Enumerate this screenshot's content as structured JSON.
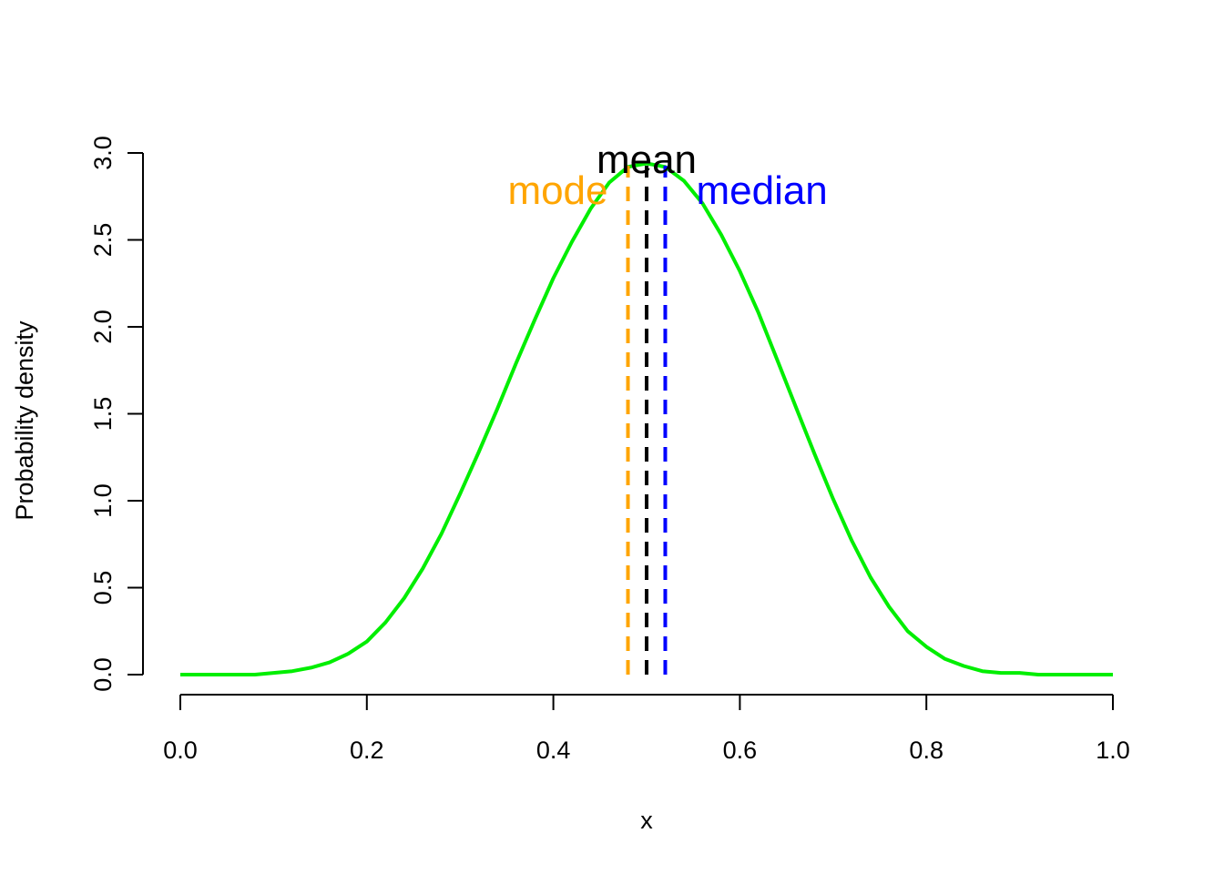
{
  "chart_data": {
    "type": "line",
    "title": "",
    "xlabel": "x",
    "ylabel": "Probability density",
    "xlim": [
      0,
      1
    ],
    "ylim": [
      0,
      3
    ],
    "x_ticks": [
      0,
      0.2,
      0.4,
      0.6,
      0.8,
      1.0
    ],
    "x_tick_labels": [
      "0.0",
      "0.2",
      "0.4",
      "0.6",
      "0.8",
      "1.0"
    ],
    "y_ticks": [
      0,
      0.5,
      1.0,
      1.5,
      2.0,
      2.5,
      3.0
    ],
    "y_tick_labels": [
      "0.0",
      "0.5",
      "1.0",
      "1.5",
      "2.0",
      "2.5",
      "3.0"
    ],
    "grid": false,
    "series": [
      {
        "color": "#00ee00",
        "x": [
          0,
          0.02,
          0.04,
          0.06,
          0.08,
          0.1,
          0.12,
          0.14,
          0.16,
          0.18,
          0.2,
          0.22,
          0.24,
          0.26,
          0.28,
          0.3,
          0.32,
          0.34,
          0.36,
          0.38,
          0.4,
          0.42,
          0.44,
          0.46,
          0.48,
          0.5,
          0.52,
          0.54,
          0.56,
          0.58,
          0.6,
          0.62,
          0.64,
          0.66,
          0.68,
          0.7,
          0.72,
          0.74,
          0.76,
          0.78,
          0.8,
          0.82,
          0.84,
          0.86,
          0.88,
          0.9,
          0.92,
          0.94,
          0.96,
          0.98,
          1.0
        ],
        "y": [
          0,
          0,
          0,
          0,
          0,
          0.01,
          0.02,
          0.04,
          0.07,
          0.12,
          0.19,
          0.3,
          0.44,
          0.61,
          0.81,
          1.04,
          1.28,
          1.53,
          1.79,
          2.04,
          2.28,
          2.49,
          2.68,
          2.83,
          2.92,
          2.94,
          2.92,
          2.84,
          2.71,
          2.53,
          2.32,
          2.08,
          1.81,
          1.54,
          1.27,
          1.01,
          0.77,
          0.56,
          0.39,
          0.25,
          0.16,
          0.09,
          0.05,
          0.02,
          0.01,
          0.01,
          0,
          0,
          0,
          0,
          0
        ]
      }
    ],
    "vlines": [
      {
        "label": "mode",
        "x": 0.48,
        "color": "#ffa500",
        "line_style": "dashed"
      },
      {
        "label": "mean",
        "x": 0.5,
        "color": "#000000",
        "line_style": "dashed"
      },
      {
        "label": "median",
        "x": 0.52,
        "color": "#0000ff",
        "line_style": "dashed"
      }
    ]
  }
}
